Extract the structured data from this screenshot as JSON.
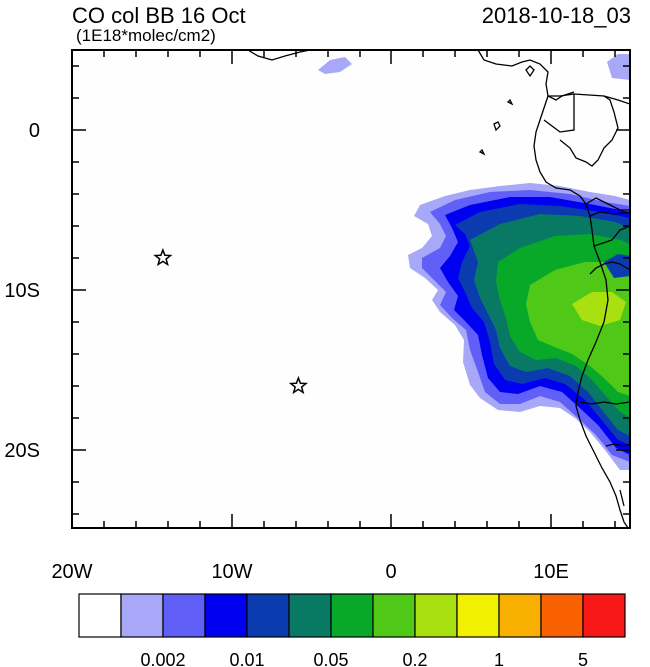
{
  "header": {
    "title": "CO col BB 16 Oct",
    "units": "(1E18*molec/cm2)",
    "date": "2018-10-18_03"
  },
  "axes": {
    "x_ticks": [
      "20W",
      "10W",
      "0",
      "10E"
    ],
    "y_ticks": [
      "0",
      "10S",
      "20S"
    ]
  },
  "colorbar": {
    "colors": [
      "#ffffff",
      "#a8a8f8",
      "#6060f8",
      "#0000f0",
      "#0a3cb0",
      "#087a64",
      "#08a828",
      "#50c818",
      "#a8e010",
      "#f0f000",
      "#f8b000",
      "#f86000",
      "#f81818"
    ],
    "labels": [
      "0.002",
      "0.01",
      "0.05",
      "0.2",
      "1",
      "5"
    ]
  },
  "markers": [
    {
      "name": "star-marker-1",
      "lon": -14.3,
      "lat": -8.0
    },
    {
      "name": "star-marker-2",
      "lon": -5.8,
      "lat": -16.0
    }
  ]
}
